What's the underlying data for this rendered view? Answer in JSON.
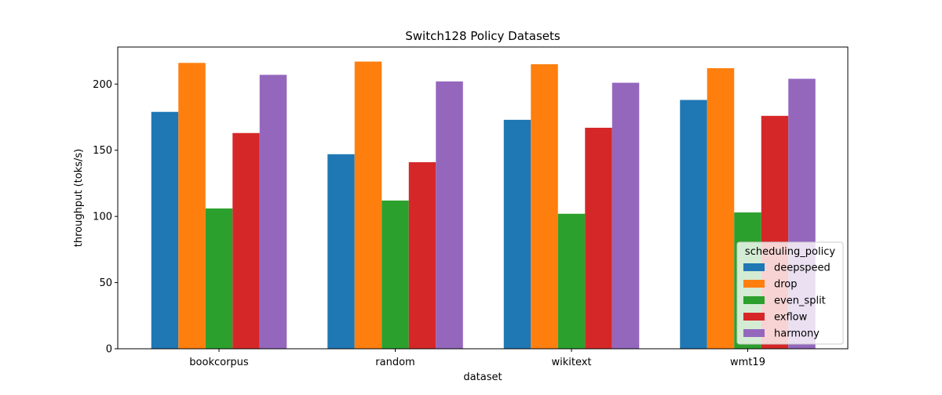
{
  "chart_data": {
    "type": "bar",
    "title": "Switch128 Policy Datasets",
    "xlabel": "dataset",
    "ylabel": "throughput (toks/s)",
    "categories": [
      "bookcorpus",
      "random",
      "wikitext",
      "wmt19"
    ],
    "ylim": [
      0,
      228
    ],
    "yticks": [
      0,
      50,
      100,
      150,
      200
    ],
    "grid": false,
    "legend": {
      "title": "scheduling_policy",
      "placement": "lower right"
    },
    "series": [
      {
        "name": "deepspeed",
        "color": "#1f77b4",
        "values": [
          179,
          147,
          173,
          188
        ]
      },
      {
        "name": "drop",
        "color": "#ff7f0e",
        "values": [
          216,
          217,
          215,
          212
        ]
      },
      {
        "name": "even_split",
        "color": "#2ca02c",
        "values": [
          106,
          112,
          102,
          103
        ]
      },
      {
        "name": "exflow",
        "color": "#d62728",
        "values": [
          163,
          141,
          167,
          176
        ]
      },
      {
        "name": "harmony",
        "color": "#9467bd",
        "values": [
          207,
          202,
          201,
          204
        ]
      }
    ]
  }
}
